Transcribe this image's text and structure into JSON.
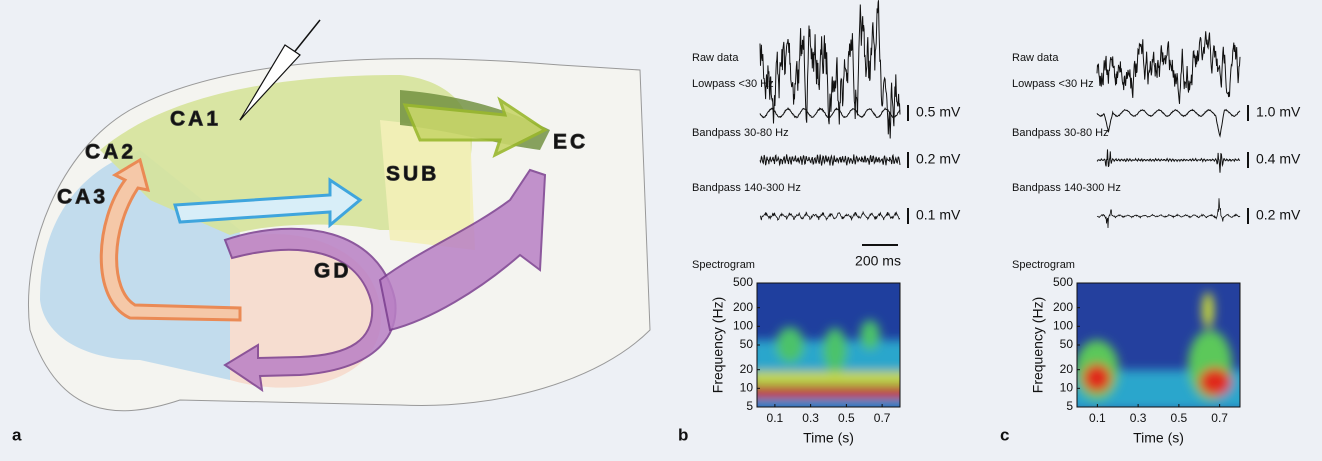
{
  "panel_a": {
    "letter": "a",
    "regions": [
      "CA1",
      "CA2",
      "CA3",
      "SUB",
      "EC",
      "GD"
    ]
  },
  "panels": [
    {
      "letter": "b",
      "traces": [
        {
          "label": "Raw data"
        },
        {
          "label": "Lowpass <30 Hz",
          "scale": "0.5 mV"
        },
        {
          "label": "Bandpass 30-80 Hz",
          "scale": "0.2 mV"
        },
        {
          "label": "Bandpass 140-300  Hz",
          "scale": "0.1 mV"
        }
      ],
      "time_scale": "200 ms",
      "spectrogram": {
        "title": "Spectrogram",
        "ylabel": "Frequency (Hz)",
        "xlabel": "Time (s)",
        "yticks": [
          5,
          10,
          20,
          50,
          100,
          200,
          500
        ],
        "ylim": [
          5,
          500
        ],
        "xticks": [
          0.1,
          0.3,
          0.5,
          0.7
        ],
        "xlim": [
          0,
          0.8
        ],
        "log_y": true
      }
    },
    {
      "letter": "c",
      "traces": [
        {
          "label": "Raw data"
        },
        {
          "label": "Lowpass <30 Hz",
          "scale": "1.0 mV"
        },
        {
          "label": "Bandpass 30-80 Hz",
          "scale": "0.4 mV"
        },
        {
          "label": "Bandpass 140-300  Hz",
          "scale": "0.2 mV"
        }
      ],
      "spectrogram": {
        "title": "Spectrogram",
        "ylabel": "Frequency (Hz)",
        "xlabel": "Time (s)",
        "yticks": [
          5,
          10,
          20,
          50,
          100,
          200,
          500
        ],
        "ylim": [
          5,
          500
        ],
        "xticks": [
          0.1,
          0.3,
          0.5,
          0.7
        ],
        "xlim": [
          0,
          0.8
        ],
        "log_y": true
      }
    }
  ]
}
